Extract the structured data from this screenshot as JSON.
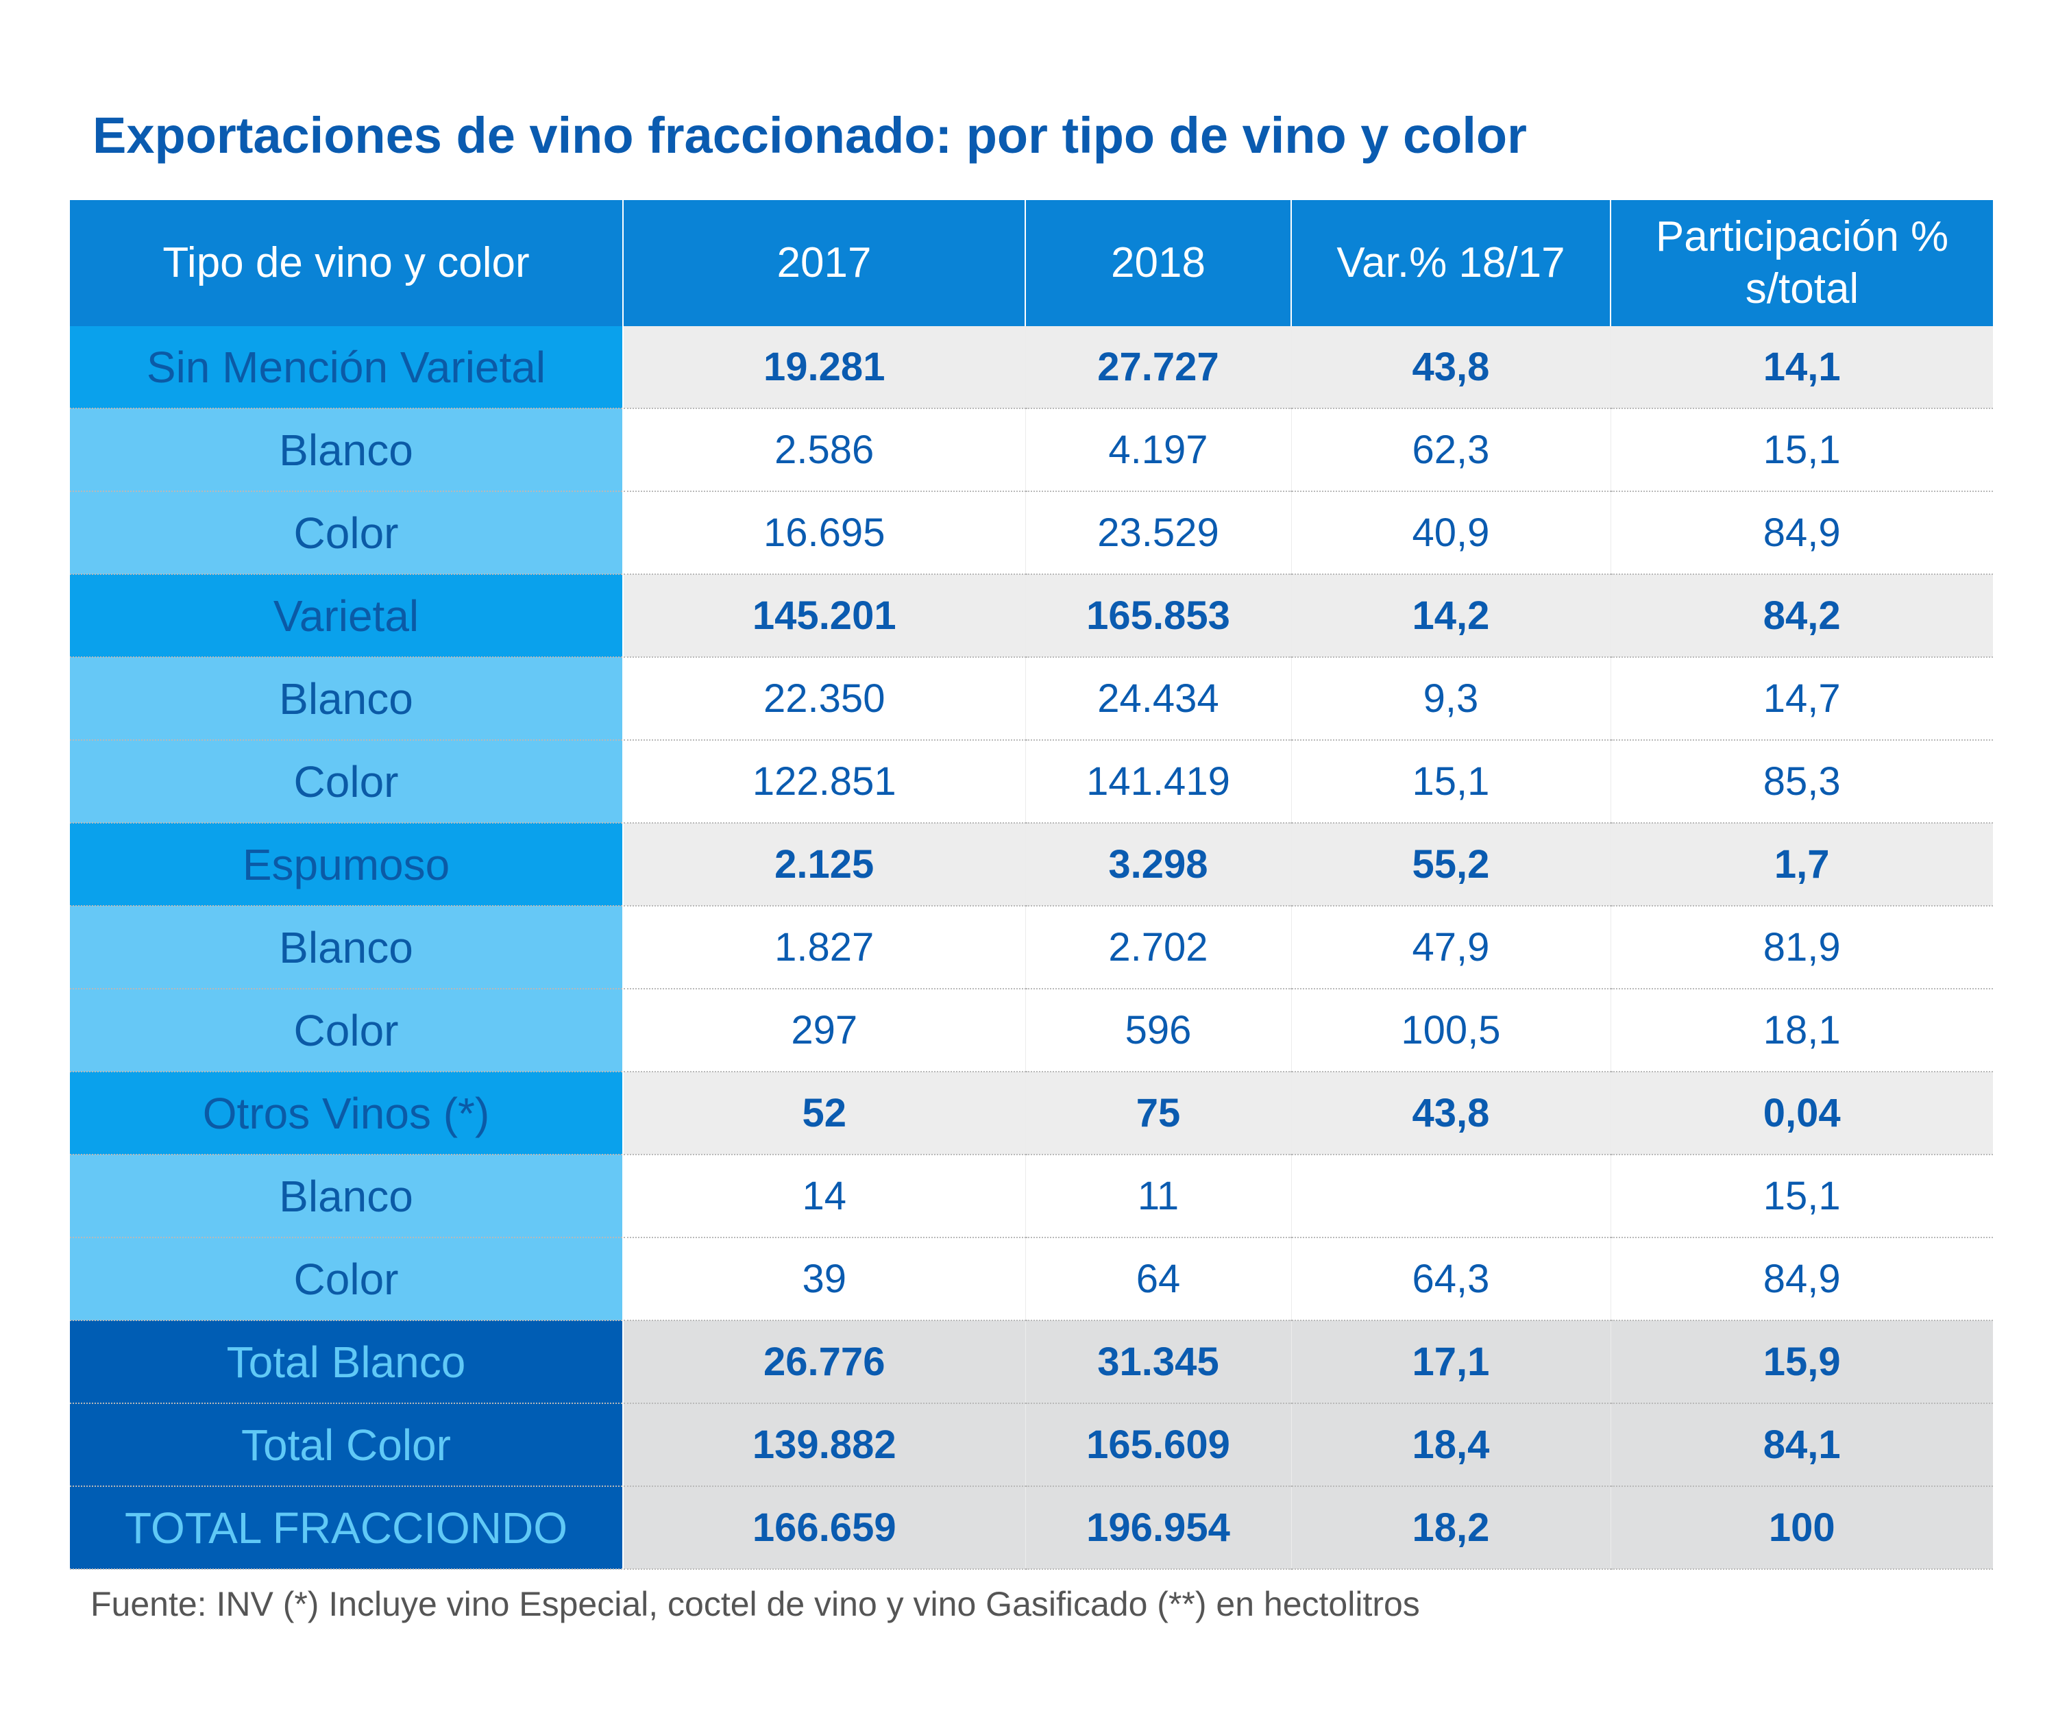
{
  "chart_data": {
    "type": "table",
    "title": "Exportaciones de vino fraccionado: por tipo de vino y color",
    "columns": [
      "Tipo de vino y color",
      "2017",
      "2018",
      "Var.% 18/17",
      "Participación %\ns/total"
    ],
    "rows": [
      {
        "kind": "group",
        "cells": [
          "Sin Mención Varietal",
          "19.281",
          "27.727",
          "43,8",
          "14,1"
        ]
      },
      {
        "kind": "sub",
        "cells": [
          "Blanco",
          "2.586",
          "4.197",
          "62,3",
          "15,1"
        ]
      },
      {
        "kind": "sub",
        "cells": [
          "Color",
          "16.695",
          "23.529",
          "40,9",
          "84,9"
        ]
      },
      {
        "kind": "group",
        "cells": [
          "Varietal",
          "145.201",
          "165.853",
          "14,2",
          "84,2"
        ]
      },
      {
        "kind": "sub",
        "cells": [
          "Blanco",
          "22.350",
          "24.434",
          "9,3",
          "14,7"
        ]
      },
      {
        "kind": "sub",
        "cells": [
          "Color",
          "122.851",
          "141.419",
          "15,1",
          "85,3"
        ]
      },
      {
        "kind": "group",
        "cells": [
          "Espumoso",
          "2.125",
          "3.298",
          "55,2",
          "1,7"
        ]
      },
      {
        "kind": "sub",
        "cells": [
          "Blanco",
          "1.827",
          "2.702",
          "47,9",
          "81,9"
        ]
      },
      {
        "kind": "sub",
        "cells": [
          "Color",
          "297",
          "596",
          "100,5",
          "18,1"
        ]
      },
      {
        "kind": "group",
        "cells": [
          "Otros Vinos (*)",
          "52",
          "75",
          "43,8",
          "0,04"
        ]
      },
      {
        "kind": "sub",
        "cells": [
          "Blanco",
          "14",
          "11",
          "",
          "15,1"
        ]
      },
      {
        "kind": "sub",
        "cells": [
          "Color",
          "39",
          "64",
          "64,3",
          "84,9"
        ]
      },
      {
        "kind": "total",
        "cells": [
          "Total Blanco",
          "26.776",
          "31.345",
          "17,1",
          "15,9"
        ]
      },
      {
        "kind": "total",
        "cells": [
          "Total Color",
          "139.882",
          "165.609",
          "18,4",
          "84,1"
        ]
      },
      {
        "kind": "total",
        "cells": [
          "TOTAL FRACCIONDO",
          "166.659",
          "196.954",
          "18,2",
          "100"
        ]
      }
    ],
    "footnote": "Fuente: INV (*) Incluye vino Especial, coctel de vino y vino Gasificado (**)  en hectolitros"
  },
  "colors": {
    "title": "#0a5bb0",
    "header_bg": "#0a83d6",
    "group_label_bg": "#0aa1ec",
    "sub_label_bg": "#66c8f6",
    "total_label_bg": "#005db4",
    "group_row_bg": "#ededed",
    "total_row_bg": "#dedfe0"
  }
}
